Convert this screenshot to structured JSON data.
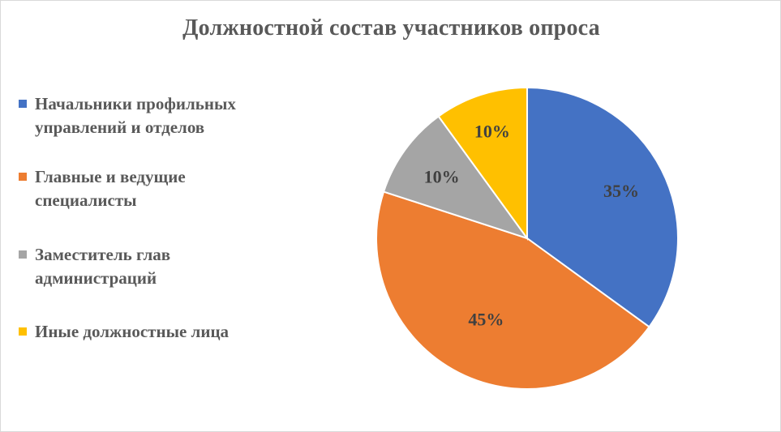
{
  "chart_data": {
    "type": "pie",
    "title": "Должностной состав участников опроса",
    "categories": [
      "Начальники профильных управлений и отделов",
      "Главные и ведущие специалисты",
      "Заместитель  глав администраций",
      "Иные должностные лица"
    ],
    "values": [
      35,
      45,
      10,
      10
    ],
    "labels": [
      "35%",
      "45%",
      "10%",
      "10%"
    ],
    "colors": [
      "#4472C4",
      "#ED7D31",
      "#A5A5A5",
      "#FFC000"
    ],
    "legend": "left"
  }
}
